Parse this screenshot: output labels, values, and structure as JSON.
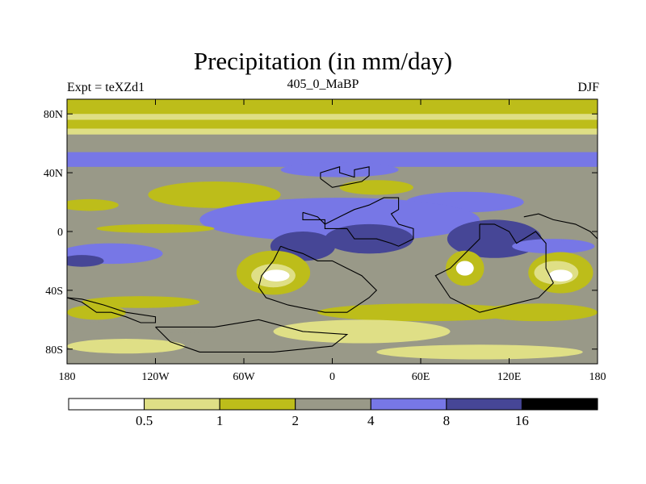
{
  "chart_data": {
    "type": "contour-map",
    "title": "Precipitation (in mm/day)",
    "left_string": "Expt = teXZd1",
    "center_string": "405_0_MaBP",
    "right_string": "DJF",
    "x_axis": {
      "range": [
        -180,
        180
      ],
      "ticks": [
        {
          "value": -180,
          "label": "180"
        },
        {
          "value": -120,
          "label": "120W"
        },
        {
          "value": -60,
          "label": "60W"
        },
        {
          "value": 0,
          "label": "0"
        },
        {
          "value": 60,
          "label": "60E"
        },
        {
          "value": 120,
          "label": "120E"
        },
        {
          "value": 180,
          "label": "180"
        }
      ]
    },
    "y_axis": {
      "range": [
        -90,
        90
      ],
      "ticks": [
        {
          "value": 80,
          "label": "80N"
        },
        {
          "value": 40,
          "label": "40N"
        },
        {
          "value": 0,
          "label": "0"
        },
        {
          "value": -40,
          "label": "40S"
        },
        {
          "value": -80,
          "label": "80S"
        }
      ]
    },
    "colorbar": {
      "levels": [
        0.5,
        1,
        2,
        4,
        8,
        16
      ],
      "level_labels": [
        "0.5",
        "1",
        "2",
        "4",
        "8",
        "16"
      ],
      "colors": [
        "#ffffff",
        "#dfdf86",
        "#bdbd1a",
        "#999988",
        "#7777e6",
        "#464696",
        "#000000"
      ]
    },
    "latitude_bands": [
      {
        "lat": [
          90,
          80
        ],
        "value": 1.5
      },
      {
        "lat": [
          80,
          76
        ],
        "value": 0.8
      },
      {
        "lat": [
          76,
          70
        ],
        "value": 1.5
      },
      {
        "lat": [
          70,
          66
        ],
        "value": 0.8
      },
      {
        "lat": [
          66,
          54
        ],
        "value": 3
      },
      {
        "lat": [
          54,
          44
        ],
        "value": 5
      },
      {
        "lat": [
          44,
          -90
        ],
        "value": 3
      }
    ],
    "anomalies": [
      {
        "lon": 5,
        "lat": 42,
        "rx": 40,
        "ry": 5,
        "value": 5
      },
      {
        "lon": 90,
        "lat": 20,
        "rx": 40,
        "ry": 7,
        "value": 5
      },
      {
        "lon": -80,
        "lat": 25,
        "rx": 45,
        "ry": 9,
        "value": 1.5
      },
      {
        "lon": 30,
        "lat": 30,
        "rx": 25,
        "ry": 5,
        "value": 1.5
      },
      {
        "lon": -165,
        "lat": 18,
        "rx": 20,
        "ry": 4,
        "value": 1.5
      },
      {
        "lon": 5,
        "lat": 8,
        "rx": 95,
        "ry": 15,
        "value": 5
      },
      {
        "lon": 25,
        "lat": -5,
        "rx": 30,
        "ry": 10,
        "value": 10
      },
      {
        "lon": -20,
        "lat": -10,
        "rx": 22,
        "ry": 10,
        "value": 10
      },
      {
        "lon": 110,
        "lat": -5,
        "rx": 32,
        "ry": 13,
        "value": 10
      },
      {
        "lon": -120,
        "lat": 2,
        "rx": 40,
        "ry": 3,
        "value": 1.5
      },
      {
        "lon": -150,
        "lat": -15,
        "rx": 35,
        "ry": 7,
        "value": 5
      },
      {
        "lon": -170,
        "lat": -20,
        "rx": 15,
        "ry": 4,
        "value": 10
      },
      {
        "lon": 150,
        "lat": -10,
        "rx": 28,
        "ry": 5,
        "value": 5
      },
      {
        "lon": -40,
        "lat": -28,
        "rx": 25,
        "ry": 15,
        "value": 1.5
      },
      {
        "lon": -40,
        "lat": -30,
        "rx": 15,
        "ry": 8,
        "value": 0.7
      },
      {
        "lon": -38,
        "lat": -30,
        "rx": 9,
        "ry": 4,
        "value": 0.3
      },
      {
        "lon": 90,
        "lat": -25,
        "rx": 13,
        "ry": 12,
        "value": 1.5
      },
      {
        "lon": 90,
        "lat": -25,
        "rx": 6,
        "ry": 5,
        "value": 0.3
      },
      {
        "lon": 155,
        "lat": -28,
        "rx": 22,
        "ry": 14,
        "value": 1.5
      },
      {
        "lon": 152,
        "lat": -28,
        "rx": 15,
        "ry": 8,
        "value": 0.7
      },
      {
        "lon": 155,
        "lat": -30,
        "rx": 8,
        "ry": 4,
        "value": 0.3
      },
      {
        "lon": -130,
        "lat": -48,
        "rx": 40,
        "ry": 4,
        "value": 1.5
      },
      {
        "lon": -160,
        "lat": -55,
        "rx": 20,
        "ry": 5,
        "value": 1.5
      },
      {
        "lon": 60,
        "lat": -55,
        "rx": 70,
        "ry": 6,
        "value": 1.5
      },
      {
        "lon": 140,
        "lat": -55,
        "rx": 40,
        "ry": 6,
        "value": 1.5
      },
      {
        "lon": -120,
        "lat": -65,
        "rx": 70,
        "ry": 4,
        "value": 3
      },
      {
        "lon": 20,
        "lat": -68,
        "rx": 60,
        "ry": 8,
        "value": 0.8
      },
      {
        "lon": -140,
        "lat": -78,
        "rx": 40,
        "ry": 5,
        "value": 0.8
      },
      {
        "lon": 100,
        "lat": -82,
        "rx": 70,
        "ry": 5,
        "value": 0.8
      }
    ],
    "land_outline": [
      [
        -20,
        13
      ],
      [
        -20,
        8
      ],
      [
        -5,
        8
      ],
      [
        -5,
        2
      ],
      [
        10,
        2
      ],
      [
        15,
        -5
      ],
      [
        30,
        -5
      ],
      [
        40,
        -8
      ],
      [
        45,
        -10
      ],
      [
        55,
        -5
      ],
      [
        55,
        2
      ],
      [
        45,
        5
      ],
      [
        40,
        12
      ],
      [
        45,
        15
      ],
      [
        45,
        23
      ],
      [
        35,
        23
      ],
      [
        25,
        18
      ],
      [
        15,
        15
      ],
      [
        5,
        10
      ],
      [
        -5,
        5
      ],
      [
        -10,
        10
      ],
      [
        -20,
        13
      ]
    ],
    "land_outline_2": [
      [
        -8,
        36
      ],
      [
        -8,
        40
      ],
      [
        5,
        44
      ],
      [
        5,
        40
      ],
      [
        15,
        37
      ],
      [
        15,
        42
      ],
      [
        25,
        44
      ],
      [
        25,
        38
      ],
      [
        20,
        34
      ],
      [
        10,
        32
      ],
      [
        0,
        30
      ],
      [
        -8,
        36
      ]
    ],
    "land_outline_3": [
      [
        100,
        5
      ],
      [
        110,
        5
      ],
      [
        120,
        0
      ],
      [
        125,
        -8
      ],
      [
        130,
        -5
      ],
      [
        138,
        0
      ],
      [
        145,
        -8
      ],
      [
        145,
        -25
      ],
      [
        150,
        -35
      ],
      [
        140,
        -45
      ],
      [
        120,
        -50
      ],
      [
        100,
        -55
      ],
      [
        80,
        -45
      ],
      [
        70,
        -30
      ],
      [
        80,
        -25
      ],
      [
        90,
        -15
      ],
      [
        100,
        -5
      ],
      [
        100,
        5
      ]
    ],
    "land_outline_4": [
      [
        -35,
        -10
      ],
      [
        -40,
        -20
      ],
      [
        -48,
        -30
      ],
      [
        -50,
        -38
      ],
      [
        -45,
        -45
      ],
      [
        -30,
        -50
      ],
      [
        -20,
        -52
      ],
      [
        -5,
        -55
      ],
      [
        10,
        -55
      ],
      [
        25,
        -45
      ],
      [
        30,
        -40
      ],
      [
        20,
        -30
      ],
      [
        10,
        -25
      ],
      [
        0,
        -20
      ],
      [
        -10,
        -20
      ],
      [
        -20,
        -15
      ],
      [
        -30,
        -12
      ],
      [
        -35,
        -10
      ]
    ],
    "land_outline_5": [
      [
        -120,
        -65
      ],
      [
        -80,
        -65
      ],
      [
        -50,
        -60
      ],
      [
        -20,
        -68
      ],
      [
        10,
        -70
      ],
      [
        0,
        -78
      ],
      [
        -40,
        -82
      ],
      [
        -90,
        -82
      ],
      [
        -110,
        -75
      ],
      [
        -120,
        -65
      ]
    ],
    "land_outline_6": [
      [
        -180,
        -45
      ],
      [
        -170,
        -48
      ],
      [
        -160,
        -55
      ],
      [
        -150,
        -55
      ],
      [
        -140,
        -58
      ],
      [
        -130,
        -62
      ],
      [
        -120,
        -62
      ],
      [
        -120,
        -58
      ],
      [
        -140,
        -55
      ],
      [
        -155,
        -50
      ],
      [
        -170,
        -46
      ],
      [
        -180,
        -45
      ]
    ],
    "land_outline_7": [
      [
        130,
        10
      ],
      [
        140,
        12
      ],
      [
        150,
        8
      ],
      [
        165,
        5
      ],
      [
        175,
        0
      ],
      [
        180,
        -5
      ]
    ]
  }
}
